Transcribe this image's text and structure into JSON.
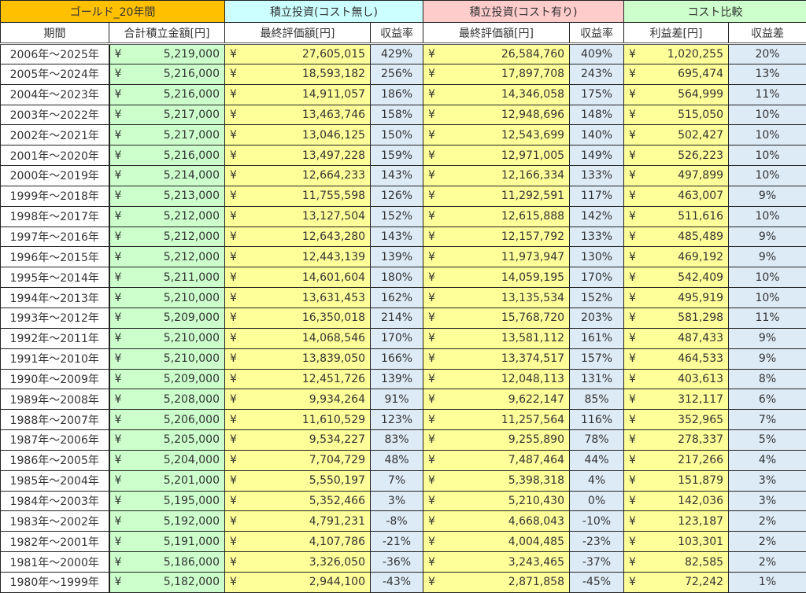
{
  "groups": [
    "ゴールド_20年間",
    "積立投資(コスト無し)",
    "積立投資(コスト有り)",
    "コスト比較"
  ],
  "headers": [
    "期間",
    "合計積立金額[円]",
    "最終評価額[円]",
    "収益率",
    "最終評価額[円]",
    "収益率",
    "利益差[円]",
    "収益差"
  ],
  "currency_symbol": "¥",
  "colors": {
    "gold": "#FFC000",
    "no_cost": "#CCFFFF",
    "with_cost": "#FFCCCC",
    "compare": "#CCFFCC",
    "total": "#CCFFCC",
    "value": "#FFFF99",
    "rate": "#DDEBF7"
  },
  "rows": [
    [
      "2006年～2025年",
      "5,219,000",
      "27,605,015",
      "429%",
      "26,584,760",
      "409%",
      "1,020,255",
      "20%"
    ],
    [
      "2005年～2024年",
      "5,216,000",
      "18,593,182",
      "256%",
      "17,897,708",
      "243%",
      "695,474",
      "13%"
    ],
    [
      "2004年～2023年",
      "5,216,000",
      "14,911,057",
      "186%",
      "14,346,058",
      "175%",
      "564,999",
      "11%"
    ],
    [
      "2003年～2022年",
      "5,217,000",
      "13,463,746",
      "158%",
      "12,948,696",
      "148%",
      "515,050",
      "10%"
    ],
    [
      "2002年～2021年",
      "5,217,000",
      "13,046,125",
      "150%",
      "12,543,699",
      "140%",
      "502,427",
      "10%"
    ],
    [
      "2001年～2020年",
      "5,216,000",
      "13,497,228",
      "159%",
      "12,971,005",
      "149%",
      "526,223",
      "10%"
    ],
    [
      "2000年～2019年",
      "5,214,000",
      "12,664,233",
      "143%",
      "12,166,334",
      "133%",
      "497,899",
      "10%"
    ],
    [
      "1999年～2018年",
      "5,213,000",
      "11,755,598",
      "126%",
      "11,292,591",
      "117%",
      "463,007",
      "9%"
    ],
    [
      "1998年～2017年",
      "5,212,000",
      "13,127,504",
      "152%",
      "12,615,888",
      "142%",
      "511,616",
      "10%"
    ],
    [
      "1997年～2016年",
      "5,212,000",
      "12,643,280",
      "143%",
      "12,157,792",
      "133%",
      "485,489",
      "9%"
    ],
    [
      "1996年～2015年",
      "5,212,000",
      "12,443,139",
      "139%",
      "11,973,947",
      "130%",
      "469,192",
      "9%"
    ],
    [
      "1995年～2014年",
      "5,211,000",
      "14,601,604",
      "180%",
      "14,059,195",
      "170%",
      "542,409",
      "10%"
    ],
    [
      "1994年～2013年",
      "5,210,000",
      "13,631,453",
      "162%",
      "13,135,534",
      "152%",
      "495,919",
      "10%"
    ],
    [
      "1993年～2012年",
      "5,209,000",
      "16,350,018",
      "214%",
      "15,768,720",
      "203%",
      "581,298",
      "11%"
    ],
    [
      "1992年～2011年",
      "5,210,000",
      "14,068,546",
      "170%",
      "13,581,112",
      "161%",
      "487,433",
      "9%"
    ],
    [
      "1991年～2010年",
      "5,210,000",
      "13,839,050",
      "166%",
      "13,374,517",
      "157%",
      "464,533",
      "9%"
    ],
    [
      "1990年～2009年",
      "5,209,000",
      "12,451,726",
      "139%",
      "12,048,113",
      "131%",
      "403,613",
      "8%"
    ],
    [
      "1989年～2008年",
      "5,208,000",
      "9,934,264",
      "91%",
      "9,622,147",
      "85%",
      "312,117",
      "6%"
    ],
    [
      "1988年～2007年",
      "5,206,000",
      "11,610,529",
      "123%",
      "11,257,564",
      "116%",
      "352,965",
      "7%"
    ],
    [
      "1987年～2006年",
      "5,205,000",
      "9,534,227",
      "83%",
      "9,255,890",
      "78%",
      "278,337",
      "5%"
    ],
    [
      "1986年～2005年",
      "5,204,000",
      "7,704,729",
      "48%",
      "7,487,464",
      "44%",
      "217,266",
      "4%"
    ],
    [
      "1985年～2004年",
      "5,201,000",
      "5,550,197",
      "7%",
      "5,398,318",
      "4%",
      "151,879",
      "3%"
    ],
    [
      "1984年～2003年",
      "5,195,000",
      "5,352,466",
      "3%",
      "5,210,430",
      "0%",
      "142,036",
      "3%"
    ],
    [
      "1983年～2002年",
      "5,192,000",
      "4,791,231",
      "-8%",
      "4,668,043",
      "-10%",
      "123,187",
      "2%"
    ],
    [
      "1982年～2001年",
      "5,191,000",
      "4,107,786",
      "-21%",
      "4,004,485",
      "-23%",
      "103,301",
      "2%"
    ],
    [
      "1981年～2000年",
      "5,186,000",
      "3,326,050",
      "-36%",
      "3,243,465",
      "-37%",
      "82,585",
      "2%"
    ],
    [
      "1980年～1999年",
      "5,182,000",
      "2,944,100",
      "-43%",
      "2,871,858",
      "-45%",
      "72,242",
      "1%"
    ]
  ]
}
